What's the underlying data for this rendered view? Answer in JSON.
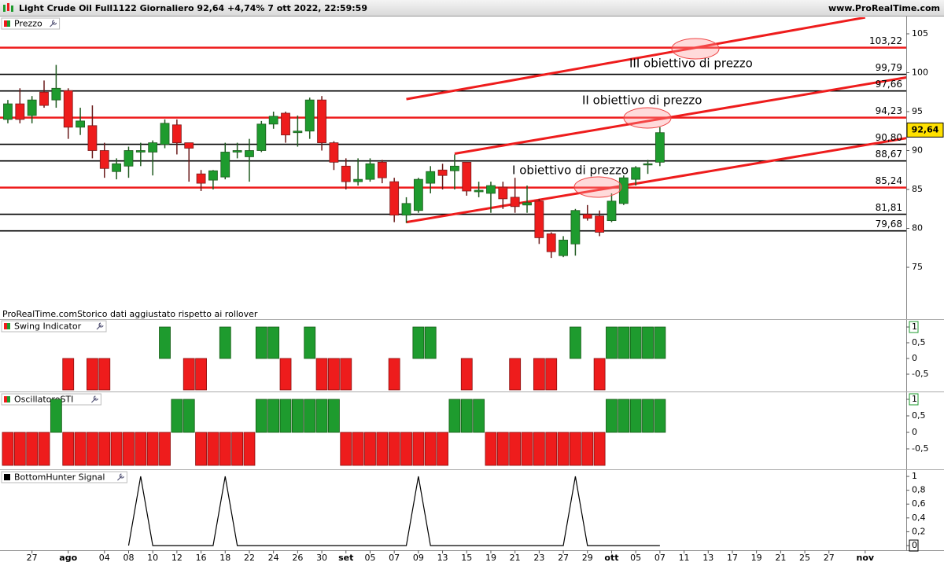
{
  "header": {
    "title": "Light Crude Oil Full1122 Giornaliero 92,64 +4,74% 7 ott 2022, 22:59:59",
    "site": "www.ProRealTime.com",
    "note": "ProRealTime.comStorico dati aggiustato rispetto ai rollover"
  },
  "xaxis": {
    "xlim": [
      -0.65,
      74.4
    ],
    "xticks": [
      {
        "value": 2,
        "label": "27"
      },
      {
        "value": 5,
        "label": "ago"
      },
      {
        "value": 8,
        "label": "04"
      },
      {
        "value": 10,
        "label": "08"
      },
      {
        "value": 12,
        "label": "10"
      },
      {
        "value": 14,
        "label": "12"
      },
      {
        "value": 16,
        "label": "16"
      },
      {
        "value": 18,
        "label": "18"
      },
      {
        "value": 20,
        "label": "22"
      },
      {
        "value": 22,
        "label": "24"
      },
      {
        "value": 24,
        "label": "26"
      },
      {
        "value": 26,
        "label": "30"
      },
      {
        "value": 28,
        "label": "set"
      },
      {
        "value": 30,
        "label": "05"
      },
      {
        "value": 32,
        "label": "07"
      },
      {
        "value": 34,
        "label": "09"
      },
      {
        "value": 36,
        "label": "13"
      },
      {
        "value": 38,
        "label": "15"
      },
      {
        "value": 40,
        "label": "19"
      },
      {
        "value": 42,
        "label": "21"
      },
      {
        "value": 44,
        "label": "23"
      },
      {
        "value": 46,
        "label": "27"
      },
      {
        "value": 48,
        "label": "29"
      },
      {
        "value": 50,
        "label": "ott"
      },
      {
        "value": 52,
        "label": "05"
      },
      {
        "value": 54,
        "label": "07"
      },
      {
        "value": 56,
        "label": "11"
      },
      {
        "value": 58,
        "label": "13"
      },
      {
        "value": 60,
        "label": "17"
      },
      {
        "value": 62,
        "label": "19"
      },
      {
        "value": 64,
        "label": "21"
      },
      {
        "value": 66,
        "label": "25"
      },
      {
        "value": 68,
        "label": "27"
      },
      {
        "value": 71,
        "label": "nov"
      }
    ]
  },
  "chart_data": [
    {
      "type": "candlestick",
      "title": "Prezzo",
      "up_color": "#1e9b2e",
      "down_color": "#ee1c1c",
      "ylim": [
        69.75,
        107.12
      ],
      "yticks": [
        75,
        80,
        85,
        90,
        95,
        100,
        105
      ],
      "open": [
        94.0,
        96.0,
        94.5,
        97.5,
        96.5,
        97.7,
        93.0,
        93.2,
        90.0,
        87.3,
        88.0,
        89.8,
        89.8,
        90.8,
        93.3,
        91.0,
        87.0,
        86.2,
        86.6,
        89.8,
        89.2,
        90.0,
        93.4,
        94.8,
        92.3,
        92.5,
        96.5,
        91.0,
        88.0,
        86.0,
        86.3,
        88.5,
        86.0,
        81.7,
        82.3,
        85.8,
        87.5,
        87.4,
        88.5,
        84.7,
        84.5,
        85.3,
        84.0,
        83.0,
        83.5,
        79.3,
        76.5,
        78.0,
        81.8,
        81.6,
        81.0,
        83.2,
        86.3,
        88.2,
        88.5
      ],
      "high": [
        96.5,
        98.0,
        97.0,
        99.0,
        101.0,
        98.0,
        95.5,
        95.8,
        91.0,
        89.0,
        90.5,
        91.0,
        91.3,
        94.0,
        94.0,
        91.0,
        87.5,
        87.5,
        91.0,
        91.0,
        91.5,
        93.8,
        95.0,
        95.0,
        94.5,
        96.8,
        97.0,
        91.2,
        89.0,
        89.0,
        89.0,
        88.8,
        86.5,
        84.0,
        86.5,
        88.0,
        88.3,
        89.5,
        88.5,
        86.0,
        86.0,
        86.0,
        86.5,
        85.5,
        83.8,
        79.5,
        79.0,
        82.5,
        83.0,
        82.3,
        84.5,
        86.8,
        88.0,
        88.8,
        93.0
      ],
      "low": [
        93.5,
        93.5,
        93.5,
        95.5,
        95.5,
        91.5,
        92.0,
        89.0,
        86.5,
        86.3,
        86.5,
        88.0,
        86.8,
        90.3,
        89.5,
        86.0,
        84.8,
        85.0,
        86.3,
        89.0,
        86.0,
        89.8,
        92.8,
        91.0,
        90.5,
        91.5,
        90.0,
        87.5,
        85.0,
        85.5,
        86.0,
        85.8,
        80.8,
        80.7,
        82.0,
        84.5,
        85.0,
        85.0,
        84.2,
        84.0,
        82.0,
        82.5,
        82.0,
        82.0,
        78.0,
        76.2,
        76.3,
        76.5,
        81.0,
        79.0,
        80.8,
        83.0,
        85.5,
        87.0,
        88.0
      ],
      "close": [
        96.0,
        94.0,
        96.5,
        95.8,
        98.0,
        93.0,
        93.8,
        90.0,
        87.7,
        88.3,
        90.0,
        90.0,
        91.0,
        93.5,
        91.0,
        90.3,
        85.8,
        87.4,
        89.8,
        90.0,
        90.0,
        93.4,
        94.4,
        92.0,
        92.5,
        96.5,
        91.0,
        88.5,
        86.0,
        86.3,
        88.3,
        86.5,
        81.7,
        83.2,
        86.3,
        87.3,
        86.8,
        88.0,
        84.8,
        84.9,
        85.5,
        83.8,
        82.8,
        83.3,
        78.8,
        77.0,
        78.5,
        82.3,
        81.3,
        79.5,
        83.5,
        86.5,
        87.8,
        88.3,
        92.3
      ],
      "levels": [
        {
          "value": 103.22,
          "label": "103,22",
          "color": "#ee1c1c"
        },
        {
          "value": 99.79,
          "label": "99,79",
          "color": "#000000"
        },
        {
          "value": 97.66,
          "label": "97,66",
          "color": "#000000"
        },
        {
          "value": 94.23,
          "label": "94,23",
          "color": "#ee1c1c"
        },
        {
          "value": 90.8,
          "label": "90,80",
          "color": "#000000"
        },
        {
          "value": 88.67,
          "label": "88,67",
          "color": "#000000"
        },
        {
          "value": 85.24,
          "label": "85,24",
          "color": "#ee1c1c"
        },
        {
          "value": 81.81,
          "label": "81,81",
          "color": "#000000"
        },
        {
          "value": 79.68,
          "label": "79,68",
          "color": "#000000"
        }
      ],
      "last": {
        "value": 92.64,
        "label": "92,64"
      },
      "trendlines": [
        {
          "color": "#ee1c1c",
          "points": [
            [
              33,
              80.8
            ],
            [
              77.5,
              92.4
            ]
          ]
        },
        {
          "color": "#ee1c1c",
          "points": [
            [
              37,
              89.6
            ],
            [
              77.5,
              100.2
            ]
          ]
        },
        {
          "color": "#ee1c1c",
          "points": [
            [
              33,
              96.6
            ],
            [
              71,
              107.1
            ]
          ]
        }
      ],
      "annotations": [
        "I obiettivo di prezzo",
        "II obiettivo di prezzo",
        "III obiettivo di prezzo"
      ]
    },
    {
      "type": "bar",
      "title": "Swing Indicator",
      "up_color": "#1e9b2e",
      "down_color": "#ee1c1c",
      "ylim": [
        -1.05,
        1.225
      ],
      "yticks": [
        {
          "value": -0.5,
          "label": "-0,5"
        },
        0,
        {
          "value": 0.5,
          "label": "0,5"
        },
        1
      ],
      "values": [
        0,
        0,
        0,
        0,
        0,
        -1,
        0,
        -1,
        -1,
        0,
        0,
        0,
        0,
        1,
        0,
        -1,
        -1,
        0,
        1,
        0,
        0,
        1,
        1,
        -1,
        0,
        1,
        -1,
        -1,
        -1,
        0,
        0,
        0,
        -1,
        0,
        1,
        1,
        0,
        0,
        -1,
        0,
        0,
        0,
        -1,
        0,
        -1,
        -1,
        0,
        1,
        0,
        -1,
        1,
        1,
        1,
        1,
        1
      ]
    },
    {
      "type": "bar",
      "title": "OscillatoreSTI",
      "up_color": "#1e9b2e",
      "down_color": "#ee1c1c",
      "ylim": [
        -1.095,
        1.19
      ],
      "yticks": [
        {
          "value": -0.5,
          "label": "-0,5"
        },
        0,
        {
          "value": 0.5,
          "label": "0,5"
        },
        1
      ],
      "values": [
        -1,
        -1,
        -1,
        -1,
        1,
        -1,
        -1,
        -1,
        -1,
        -1,
        -1,
        -1,
        -1,
        -1,
        1,
        1,
        -1,
        -1,
        -1,
        -1,
        -1,
        1,
        1,
        1,
        1,
        1,
        1,
        1,
        -1,
        -1,
        -1,
        -1,
        -1,
        -1,
        -1,
        -1,
        -1,
        1,
        1,
        1,
        -1,
        -1,
        -1,
        -1,
        -1,
        -1,
        -1,
        -1,
        -1,
        -1,
        1,
        1,
        1,
        1,
        1
      ]
    },
    {
      "type": "line",
      "title": "BottomHunter Signal",
      "color": "#000000",
      "ylim": [
        -0.068,
        1.08
      ],
      "yticks": [
        0,
        {
          "value": 0.2,
          "label": "0,2"
        },
        {
          "value": 0.4,
          "label": "0,4"
        },
        {
          "value": 0.6,
          "label": "0,6"
        },
        {
          "value": 0.8,
          "label": "0,8"
        },
        1
      ],
      "values": [
        null,
        null,
        null,
        null,
        null,
        null,
        null,
        null,
        null,
        null,
        0,
        1,
        0,
        0,
        0,
        0,
        0,
        0,
        1,
        0,
        0,
        0,
        0,
        0,
        0,
        0,
        0,
        0,
        0,
        0,
        0,
        0,
        0,
        0,
        1,
        0,
        0,
        0,
        0,
        0,
        0,
        0,
        0,
        0,
        0,
        0,
        0,
        1,
        0,
        0,
        0,
        0,
        0,
        0,
        0
      ]
    }
  ]
}
